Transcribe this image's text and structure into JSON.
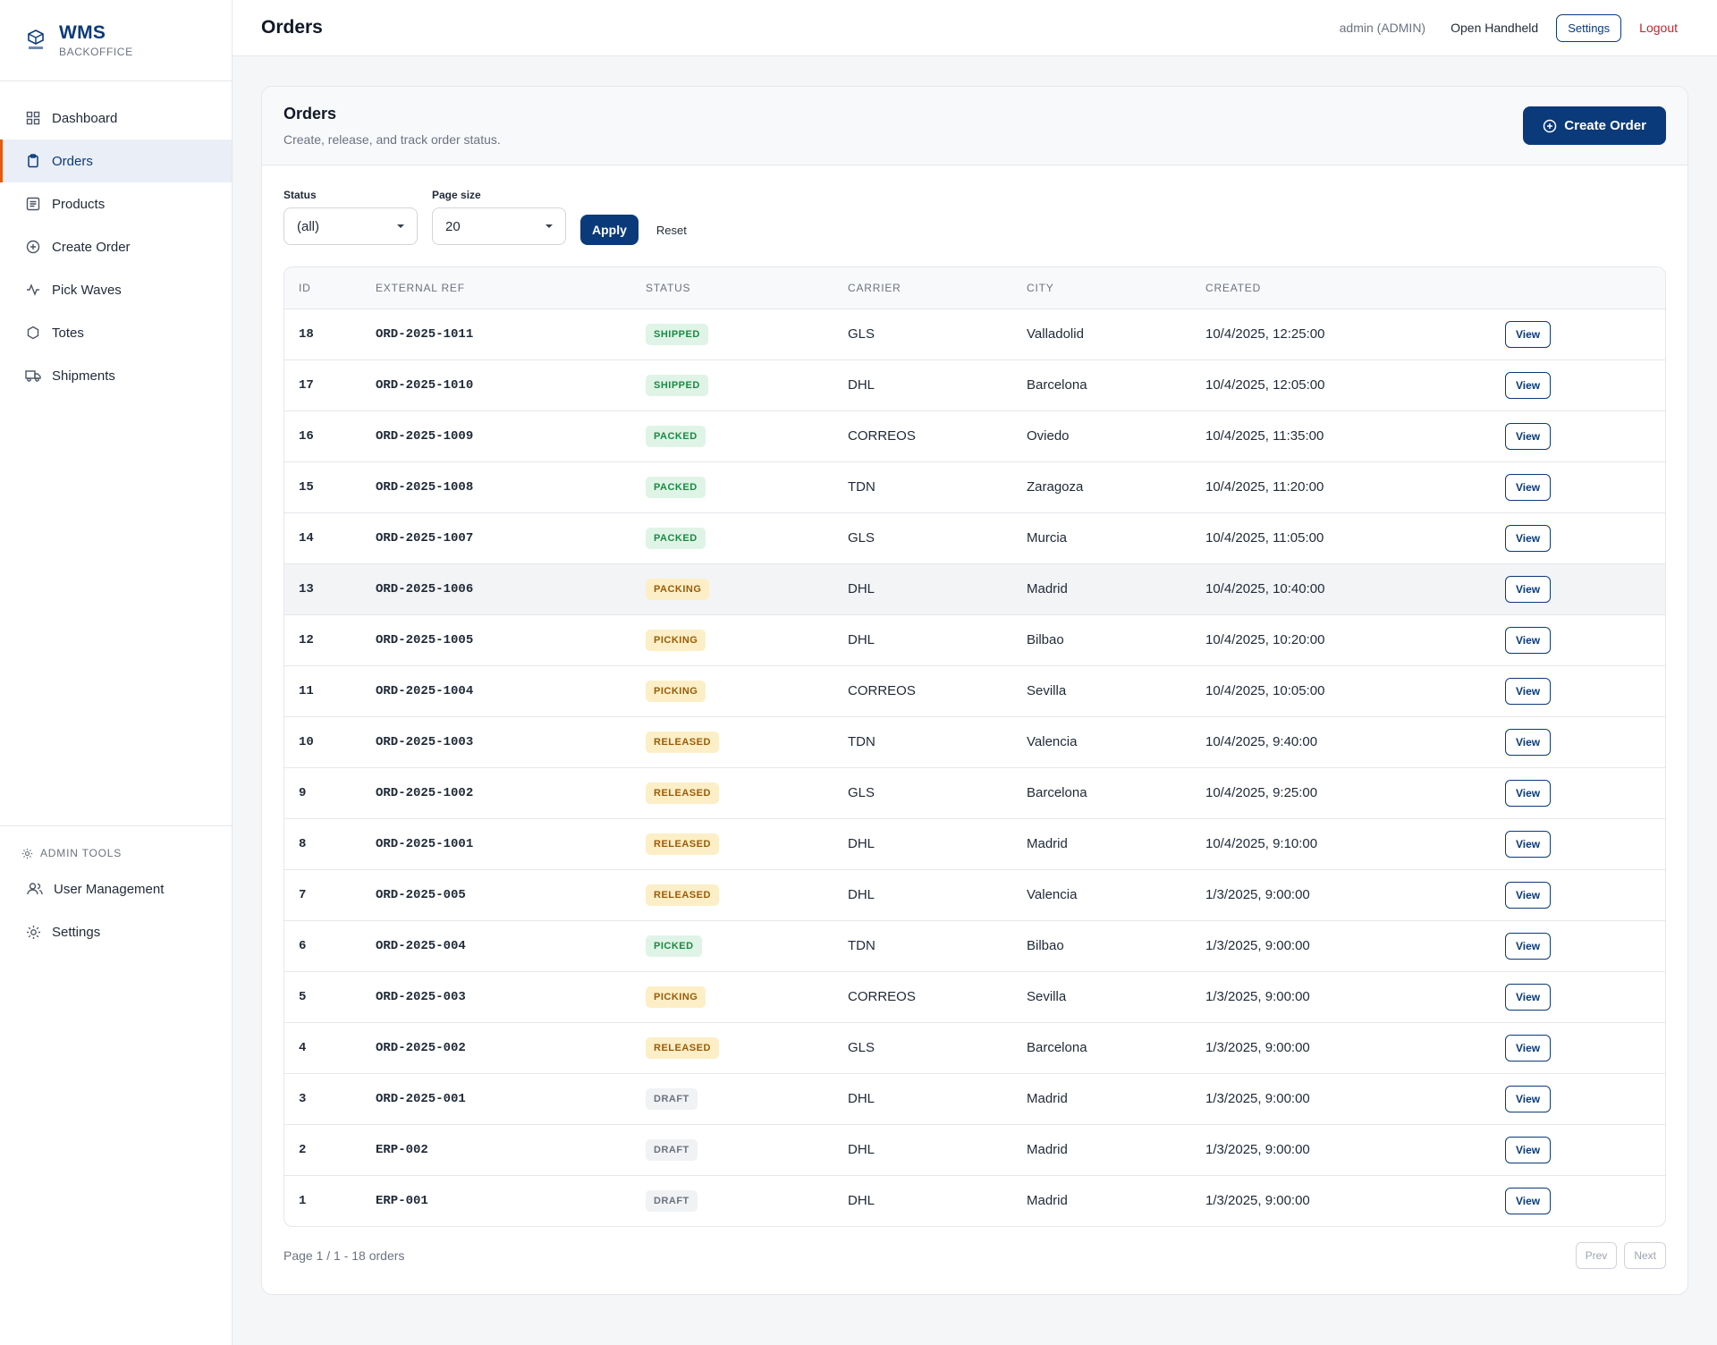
{
  "brand": {
    "title": "WMS",
    "subtitle": "BACKOFFICE",
    "logo_icon": "warehouse-logo-icon"
  },
  "sidebar": {
    "items": [
      {
        "label": "Dashboard",
        "icon": "grid-icon"
      },
      {
        "label": "Orders",
        "icon": "clipboard-icon",
        "active": true
      },
      {
        "label": "Products",
        "icon": "list-icon"
      },
      {
        "label": "Create Order",
        "icon": "plus-circle-icon"
      },
      {
        "label": "Pick Waves",
        "icon": "activity-icon"
      },
      {
        "label": "Totes",
        "icon": "hexagon-icon"
      },
      {
        "label": "Shipments",
        "icon": "truck-icon"
      }
    ],
    "admin_header": "ADMIN TOOLS",
    "admin_items": [
      {
        "label": "User Management",
        "icon": "users-icon"
      },
      {
        "label": "Settings",
        "icon": "gear-icon"
      }
    ]
  },
  "topbar": {
    "title": "Orders",
    "user": "admin (ADMIN)",
    "handheld": "Open Handheld",
    "settings": "Settings",
    "logout": "Logout"
  },
  "card": {
    "title": "Orders",
    "subtitle": "Create, release, and track order status.",
    "create_button": "Create Order"
  },
  "filters": {
    "status_label": "Status",
    "status_value": "(all)",
    "page_size_label": "Page size",
    "page_size_value": "20",
    "apply": "Apply",
    "reset": "Reset"
  },
  "table": {
    "headers": [
      "ID",
      "EXTERNAL REF",
      "STATUS",
      "CARRIER",
      "CITY",
      "CREATED"
    ],
    "view_label": "View",
    "rows": [
      {
        "id": "18",
        "ref": "ORD-2025-1011",
        "status": "SHIPPED",
        "carrier": "GLS",
        "city": "Valladolid",
        "created": "10/4/2025, 12:25:00"
      },
      {
        "id": "17",
        "ref": "ORD-2025-1010",
        "status": "SHIPPED",
        "carrier": "DHL",
        "city": "Barcelona",
        "created": "10/4/2025, 12:05:00"
      },
      {
        "id": "16",
        "ref": "ORD-2025-1009",
        "status": "PACKED",
        "carrier": "CORREOS",
        "city": "Oviedo",
        "created": "10/4/2025, 11:35:00"
      },
      {
        "id": "15",
        "ref": "ORD-2025-1008",
        "status": "PACKED",
        "carrier": "TDN",
        "city": "Zaragoza",
        "created": "10/4/2025, 11:20:00"
      },
      {
        "id": "14",
        "ref": "ORD-2025-1007",
        "status": "PACKED",
        "carrier": "GLS",
        "city": "Murcia",
        "created": "10/4/2025, 11:05:00"
      },
      {
        "id": "13",
        "ref": "ORD-2025-1006",
        "status": "PACKING",
        "carrier": "DHL",
        "city": "Madrid",
        "created": "10/4/2025, 10:40:00"
      },
      {
        "id": "12",
        "ref": "ORD-2025-1005",
        "status": "PICKING",
        "carrier": "DHL",
        "city": "Bilbao",
        "created": "10/4/2025, 10:20:00"
      },
      {
        "id": "11",
        "ref": "ORD-2025-1004",
        "status": "PICKING",
        "carrier": "CORREOS",
        "city": "Sevilla",
        "created": "10/4/2025, 10:05:00"
      },
      {
        "id": "10",
        "ref": "ORD-2025-1003",
        "status": "RELEASED",
        "carrier": "TDN",
        "city": "Valencia",
        "created": "10/4/2025, 9:40:00"
      },
      {
        "id": "9",
        "ref": "ORD-2025-1002",
        "status": "RELEASED",
        "carrier": "GLS",
        "city": "Barcelona",
        "created": "10/4/2025, 9:25:00"
      },
      {
        "id": "8",
        "ref": "ORD-2025-1001",
        "status": "RELEASED",
        "carrier": "DHL",
        "city": "Madrid",
        "created": "10/4/2025, 9:10:00"
      },
      {
        "id": "7",
        "ref": "ORD-2025-005",
        "status": "RELEASED",
        "carrier": "DHL",
        "city": "Valencia",
        "created": "1/3/2025, 9:00:00"
      },
      {
        "id": "6",
        "ref": "ORD-2025-004",
        "status": "PICKED",
        "carrier": "TDN",
        "city": "Bilbao",
        "created": "1/3/2025, 9:00:00"
      },
      {
        "id": "5",
        "ref": "ORD-2025-003",
        "status": "PICKING",
        "carrier": "CORREOS",
        "city": "Sevilla",
        "created": "1/3/2025, 9:00:00"
      },
      {
        "id": "4",
        "ref": "ORD-2025-002",
        "status": "RELEASED",
        "carrier": "GLS",
        "city": "Barcelona",
        "created": "1/3/2025, 9:00:00"
      },
      {
        "id": "3",
        "ref": "ORD-2025-001",
        "status": "DRAFT",
        "carrier": "DHL",
        "city": "Madrid",
        "created": "1/3/2025, 9:00:00"
      },
      {
        "id": "2",
        "ref": "ERP-002",
        "status": "DRAFT",
        "carrier": "DHL",
        "city": "Madrid",
        "created": "1/3/2025, 9:00:00"
      },
      {
        "id": "1",
        "ref": "ERP-001",
        "status": "DRAFT",
        "carrier": "DHL",
        "city": "Madrid",
        "created": "1/3/2025, 9:00:00"
      }
    ]
  },
  "footer": {
    "page_info": "Page 1 / 1 - 18 orders",
    "prev": "Prev",
    "next": "Next"
  },
  "colors": {
    "brand": "#0b3a7a",
    "accent": "#e8590c",
    "danger": "#c0262d"
  }
}
